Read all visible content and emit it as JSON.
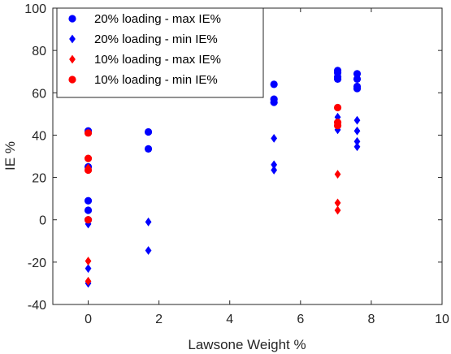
{
  "chart_data": {
    "type": "scatter",
    "xlabel": "Lawsone Weight %",
    "ylabel": "IE %",
    "xlim": [
      -1,
      10
    ],
    "ylim": [
      -40,
      100
    ],
    "xticks": [
      "0",
      "2",
      "4",
      "6",
      "8",
      "10"
    ],
    "yticks": [
      "-40",
      "-20",
      "0",
      "20",
      "40",
      "60",
      "80",
      "100"
    ],
    "grid": false,
    "legend_position": "top-left",
    "series": [
      {
        "name": "20% loading - max IE%",
        "color": "#0000ff",
        "marker": "circle",
        "points": [
          [
            0,
            42
          ],
          [
            0,
            25
          ],
          [
            0,
            9
          ],
          [
            0,
            4.5
          ],
          [
            0,
            0
          ],
          [
            1.7,
            41.5
          ],
          [
            1.7,
            33.5
          ],
          [
            5.25,
            64
          ],
          [
            5.25,
            57
          ],
          [
            5.25,
            55.5
          ],
          [
            7.05,
            70.5
          ],
          [
            7.05,
            69.5
          ],
          [
            7.05,
            67.5
          ],
          [
            7.05,
            66.5
          ],
          [
            7.6,
            69
          ],
          [
            7.6,
            66.5
          ],
          [
            7.6,
            63
          ],
          [
            7.6,
            62
          ]
        ]
      },
      {
        "name": "20% loading - min IE%",
        "color": "#0000ff",
        "marker": "diamond",
        "points": [
          [
            0,
            -2
          ],
          [
            0,
            -23
          ],
          [
            0,
            -30
          ],
          [
            1.7,
            -1
          ],
          [
            1.7,
            -14.5
          ],
          [
            5.25,
            38.5
          ],
          [
            5.25,
            26
          ],
          [
            5.25,
            23.5
          ],
          [
            7.05,
            48.5
          ],
          [
            7.05,
            42.5
          ],
          [
            7.6,
            47
          ],
          [
            7.6,
            42
          ],
          [
            7.6,
            37
          ],
          [
            7.6,
            34.5
          ]
        ]
      },
      {
        "name": "10% loading - max IE%",
        "color": "#ff0000",
        "marker": "diamond",
        "points": [
          [
            0,
            24.5
          ],
          [
            0,
            -19.5
          ],
          [
            0,
            -29
          ],
          [
            7.05,
            21.5
          ],
          [
            7.05,
            8
          ],
          [
            7.05,
            4.5
          ]
        ]
      },
      {
        "name": "10% loading - min IE%",
        "color": "#ff0000",
        "marker": "circle",
        "points": [
          [
            0,
            41
          ],
          [
            0,
            29
          ],
          [
            0,
            23.5
          ],
          [
            0,
            0
          ],
          [
            7.05,
            53
          ],
          [
            7.05,
            46
          ],
          [
            7.05,
            44.5
          ]
        ]
      }
    ]
  }
}
